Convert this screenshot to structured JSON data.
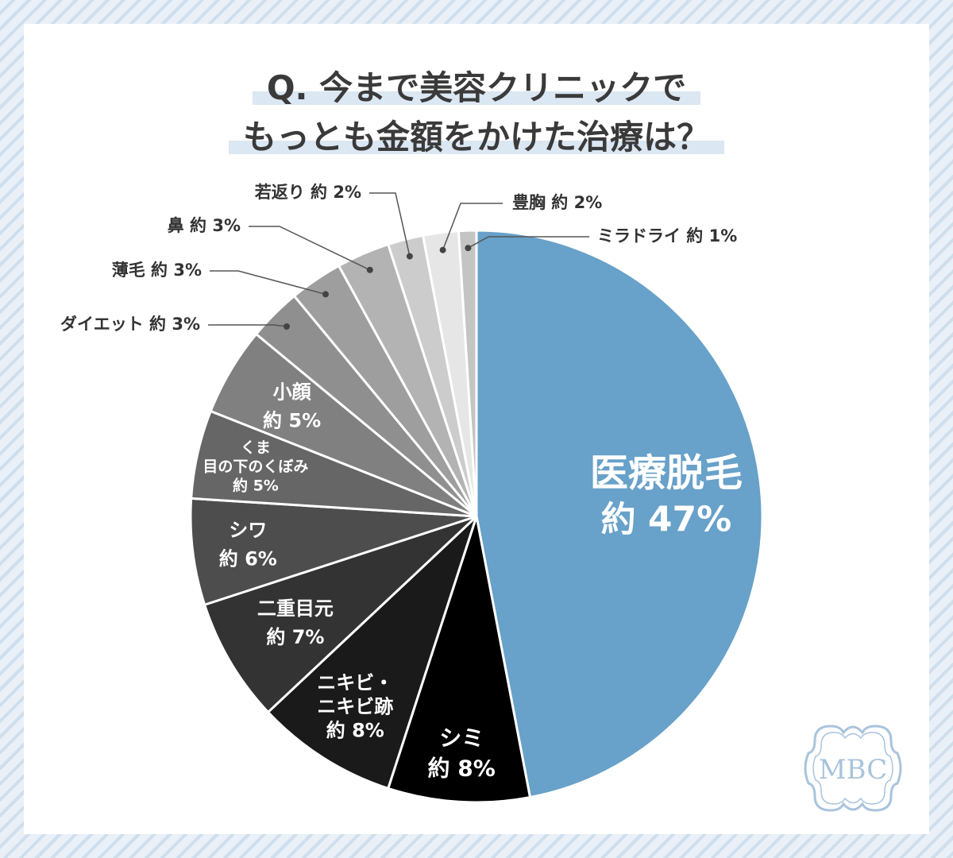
{
  "title": {
    "line1": "Q. 今まで美容クリニックで",
    "line2": "もっとも金額をかけた治療は？"
  },
  "chart_data": {
    "type": "pie",
    "title": "Q. 今まで美容クリニックで もっとも金額をかけた治療は？",
    "slices": [
      {
        "name": "医療脱毛",
        "value": 47,
        "label_lines": [
          "医療脱毛"
        ],
        "value_text": "約 47%",
        "color": "#68a1c9",
        "placement": "inside"
      },
      {
        "name": "シミ",
        "value": 8,
        "label_lines": [
          "シミ"
        ],
        "value_text": "約 8%",
        "color": "#000000",
        "placement": "inside"
      },
      {
        "name": "ニキビ・ニキビ跡",
        "value": 8,
        "label_lines": [
          "ニキビ・",
          "ニキビ跡"
        ],
        "value_text": "約 8%",
        "color": "#1a1a1a",
        "placement": "inside"
      },
      {
        "name": "二重目元",
        "value": 7,
        "label_lines": [
          "二重目元"
        ],
        "value_text": "約 7%",
        "color": "#333333",
        "placement": "inside"
      },
      {
        "name": "シワ",
        "value": 6,
        "label_lines": [
          "シワ"
        ],
        "value_text": "約 6%",
        "color": "#4d4d4d",
        "placement": "inside"
      },
      {
        "name": "くま 目の下のくぼみ",
        "value": 5,
        "label_lines": [
          "くま",
          "目の下のくぼみ"
        ],
        "value_text": "約 5%",
        "color": "#666666",
        "placement": "inside"
      },
      {
        "name": "小顔",
        "value": 5,
        "label_lines": [
          "小顔"
        ],
        "value_text": "約 5%",
        "color": "#808080",
        "placement": "inside"
      },
      {
        "name": "ダイエット",
        "value": 3,
        "label_lines": [
          "ダイエット"
        ],
        "value_text": "約 3%",
        "color": "#8f8f8f",
        "placement": "outside"
      },
      {
        "name": "薄毛",
        "value": 3,
        "label_lines": [
          "薄毛"
        ],
        "value_text": "約 3%",
        "color": "#9e9e9e",
        "placement": "outside"
      },
      {
        "name": "鼻",
        "value": 3,
        "label_lines": [
          "鼻"
        ],
        "value_text": "約 3%",
        "color": "#b3b3b3",
        "placement": "outside"
      },
      {
        "name": "若返り",
        "value": 2,
        "label_lines": [
          "若返り"
        ],
        "value_text": "約 2%",
        "color": "#cccccc",
        "placement": "outside"
      },
      {
        "name": "豊胸",
        "value": 2,
        "label_lines": [
          "豊胸"
        ],
        "value_text": "約 2%",
        "color": "#e6e6e6",
        "placement": "outside"
      },
      {
        "name": "ミラドライ",
        "value": 1,
        "label_lines": [
          "ミラドライ"
        ],
        "value_text": "約 1%",
        "color": "#c4c4c4",
        "placement": "outside"
      }
    ]
  },
  "logo": {
    "text": "MBC",
    "color": "#a9c4dc"
  }
}
